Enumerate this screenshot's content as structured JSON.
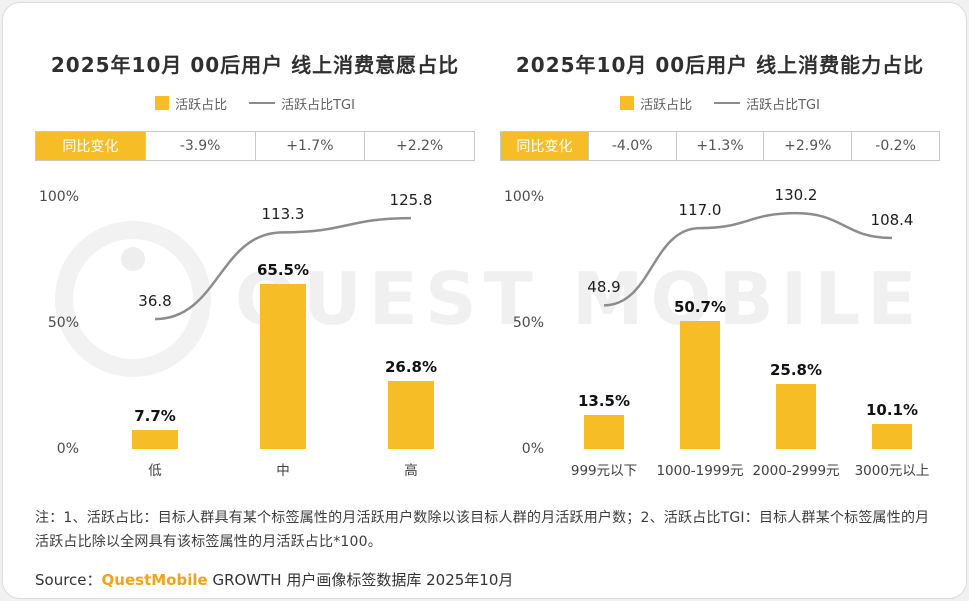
{
  "page": {
    "watermark": "QUEST MOBILE",
    "note": "注：1、活跃占比：目标人群具有某个标签属性的月活跃用户数除以该目标人群的月活跃用户数；2、活跃占比TGI：目标人群某个标签属性的月活跃占比除以全网具有该标签属性的月活跃占比*100。",
    "source_label": "Source：",
    "source_brand": "QuestMobile",
    "source_rest": " GROWTH 用户画像标签数据库 2025年10月"
  },
  "colors": {
    "bar_color": "#F7BD26",
    "line_color": "#8c8c8c",
    "brand_color": "#F0A31C"
  },
  "chart_data": [
    {
      "type": "bar+line",
      "title": "2025年10月 00后用户 线上消费意愿占比",
      "legend": [
        "活跃占比",
        "活跃占比TGI"
      ],
      "yoy_label": "同比变化",
      "yoy_values": [
        "-3.9%",
        "+1.7%",
        "+2.2%"
      ],
      "categories": [
        "低",
        "中",
        "高"
      ],
      "series": [
        {
          "name": "活跃占比",
          "type": "bar",
          "unit": "%",
          "values": [
            7.7,
            65.5,
            26.8
          ]
        },
        {
          "name": "活跃占比TGI",
          "type": "line",
          "values": [
            36.8,
            113.3,
            125.8
          ]
        }
      ],
      "yticks": [
        "100%",
        "50%",
        "0%"
      ],
      "ylim": [
        0,
        100
      ],
      "grid": false,
      "legend_position": "top"
    },
    {
      "type": "bar+line",
      "title": "2025年10月 00后用户 线上消费能力占比",
      "legend": [
        "活跃占比",
        "活跃占比TGI"
      ],
      "yoy_label": "同比变化",
      "yoy_values": [
        "-4.0%",
        "+1.3%",
        "+2.9%",
        "-0.2%"
      ],
      "categories": [
        "999元以下",
        "1000-1999元",
        "2000-2999元",
        "3000元以上"
      ],
      "series": [
        {
          "name": "活跃占比",
          "type": "bar",
          "unit": "%",
          "values": [
            13.5,
            50.7,
            25.8,
            10.1
          ]
        },
        {
          "name": "活跃占比TGI",
          "type": "line",
          "values": [
            48.9,
            117.0,
            130.2,
            108.4
          ]
        }
      ],
      "yticks": [
        "100%",
        "50%",
        "0%"
      ],
      "ylim": [
        0,
        100
      ],
      "grid": false,
      "legend_position": "top"
    }
  ]
}
